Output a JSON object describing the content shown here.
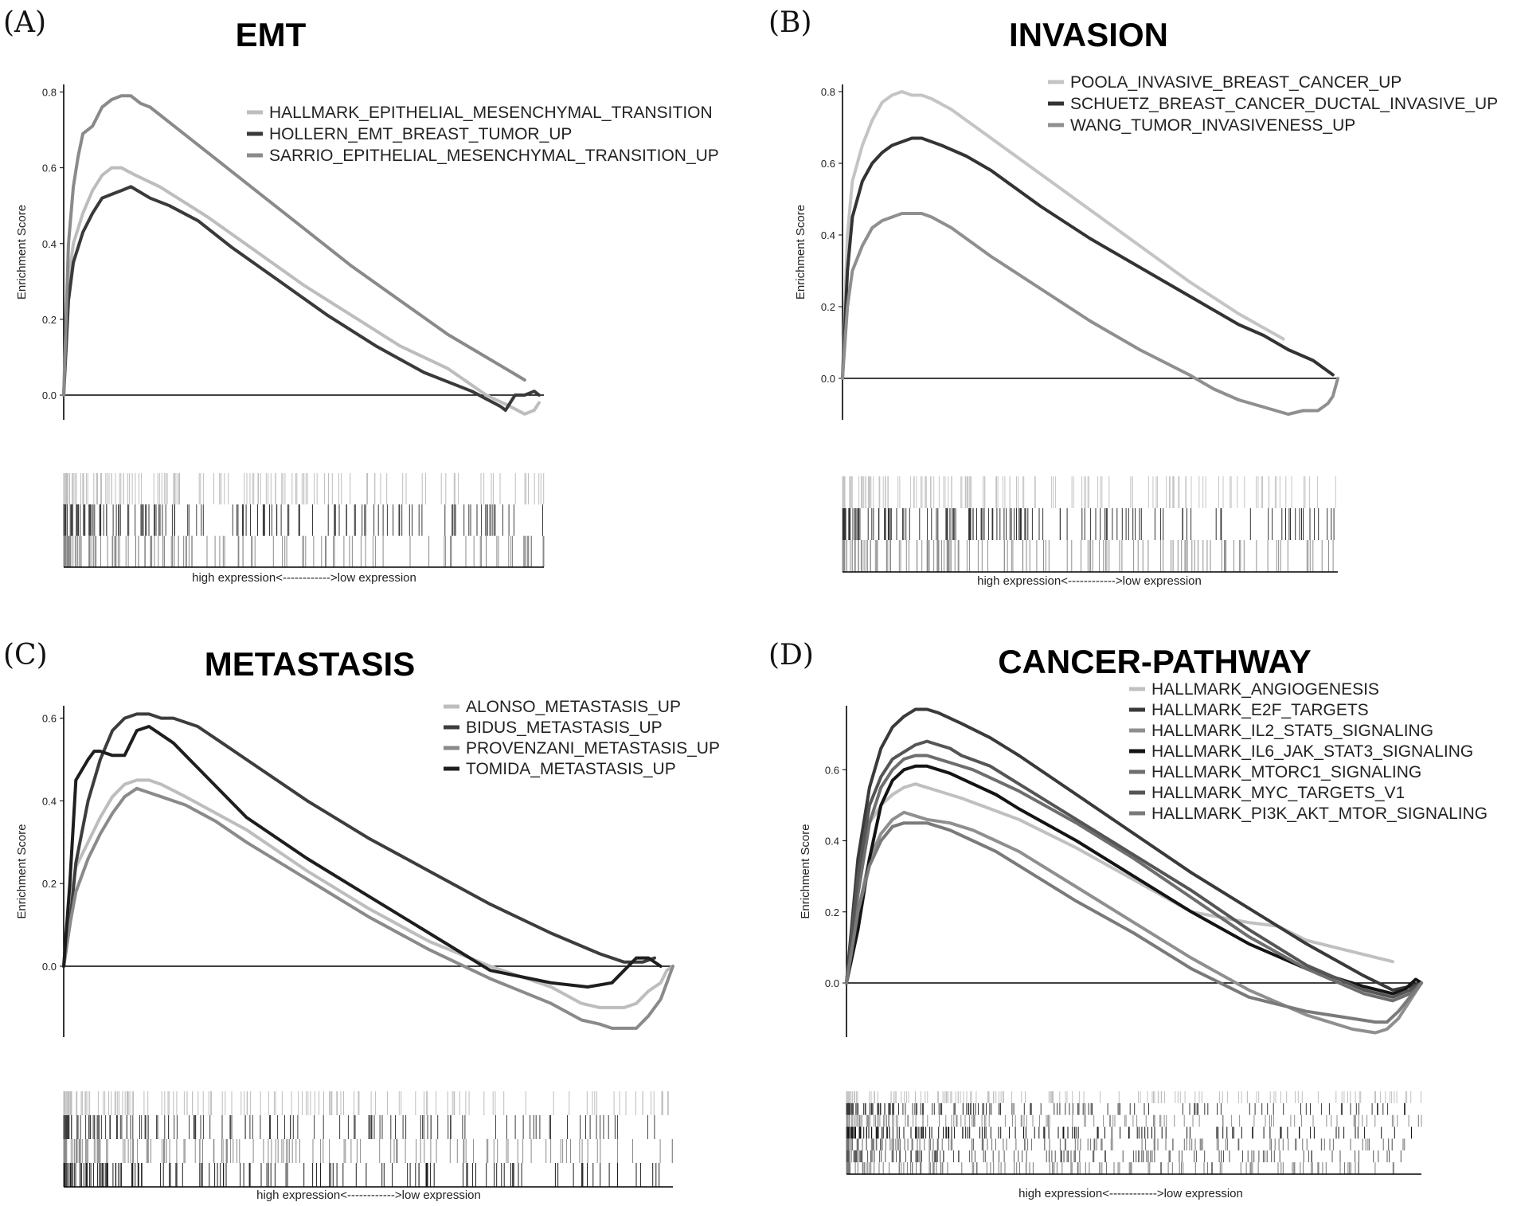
{
  "chart_data": [
    {
      "type": "line",
      "panel_label": "(A)",
      "title": "EMT",
      "ylabel": "Enrichment Score",
      "xlabel": "high expression<------------>low expression",
      "xlim": [
        0,
        100
      ],
      "ylim": [
        -0.08,
        0.82
      ],
      "yticks": [
        0.0,
        0.2,
        0.4,
        0.6,
        0.8
      ],
      "ytick_labels": [
        "0.0",
        "0.2",
        "0.4",
        "0.6",
        "0.8"
      ],
      "legend_position": "top-right",
      "series": [
        {
          "name": "HALLMARK_EPITHELIAL_MESENCHYMAL_TRANSITION",
          "color": "#bdbdbd",
          "x": [
            0,
            1,
            2,
            4,
            6,
            8,
            10,
            12,
            15,
            20,
            25,
            30,
            40,
            50,
            60,
            70,
            80,
            88,
            93,
            96,
            98,
            99
          ],
          "y": [
            0.0,
            0.3,
            0.4,
            0.48,
            0.54,
            0.58,
            0.6,
            0.6,
            0.58,
            0.55,
            0.51,
            0.47,
            0.38,
            0.29,
            0.21,
            0.13,
            0.07,
            0.0,
            -0.03,
            -0.05,
            -0.04,
            -0.02
          ]
        },
        {
          "name": "HOLLERN_EMT_BREAST_TUMOR_UP",
          "color": "#3a3a3a",
          "x": [
            0,
            1,
            2,
            4,
            6,
            8,
            10,
            12,
            14,
            18,
            22,
            28,
            35,
            45,
            55,
            65,
            75,
            85,
            88,
            91,
            92,
            94,
            96,
            98,
            99
          ],
          "y": [
            0.0,
            0.25,
            0.35,
            0.43,
            0.48,
            0.52,
            0.53,
            0.54,
            0.55,
            0.52,
            0.5,
            0.46,
            0.39,
            0.3,
            0.21,
            0.13,
            0.06,
            0.01,
            -0.01,
            -0.03,
            -0.04,
            0.0,
            0.0,
            0.01,
            0.0
          ]
        },
        {
          "name": "SARRIO_EPITHELIAL_MESENCHYMAL_TRANSITION_UP",
          "color": "#8a8a8a",
          "x": [
            0,
            1,
            2,
            3,
            4,
            6,
            8,
            10,
            12,
            14,
            16,
            18,
            22,
            26,
            30,
            40,
            50,
            60,
            70,
            80,
            88,
            92,
            96
          ],
          "y": [
            0.0,
            0.4,
            0.55,
            0.63,
            0.69,
            0.71,
            0.76,
            0.78,
            0.79,
            0.79,
            0.77,
            0.76,
            0.72,
            0.68,
            0.64,
            0.54,
            0.44,
            0.34,
            0.25,
            0.16,
            0.1,
            0.07,
            0.04
          ]
        }
      ],
      "rug_rows": 3
    },
    {
      "type": "line",
      "panel_label": "(B)",
      "title": "INVASION",
      "ylabel": "Enrichment Score",
      "xlabel": "high expression<------------>low expression",
      "xlim": [
        0,
        100
      ],
      "ylim": [
        -0.12,
        0.82
      ],
      "yticks": [
        0.0,
        0.2,
        0.4,
        0.6,
        0.8
      ],
      "ytick_labels": [
        "0.0",
        "0.2",
        "0.4",
        "0.6",
        "0.8"
      ],
      "legend_position": "top-right",
      "series": [
        {
          "name": "POOLA_INVASIVE_BREAST_CANCER_UP",
          "color": "#c4c4c4",
          "x": [
            0,
            1,
            2,
            4,
            6,
            8,
            10,
            12,
            14,
            16,
            18,
            22,
            26,
            30,
            40,
            50,
            60,
            70,
            80,
            89
          ],
          "y": [
            0.0,
            0.4,
            0.55,
            0.65,
            0.72,
            0.77,
            0.79,
            0.8,
            0.79,
            0.79,
            0.78,
            0.75,
            0.71,
            0.67,
            0.57,
            0.47,
            0.37,
            0.27,
            0.18,
            0.11
          ]
        },
        {
          "name": "SCHUETZ_BREAST_CANCER_DUCTAL_INVASIVE_UP",
          "color": "#333333",
          "x": [
            0,
            1,
            2,
            4,
            6,
            8,
            10,
            12,
            14,
            16,
            18,
            20,
            25,
            30,
            40,
            50,
            60,
            70,
            80,
            85,
            90,
            95,
            98,
            99
          ],
          "y": [
            0.0,
            0.3,
            0.45,
            0.55,
            0.6,
            0.63,
            0.65,
            0.66,
            0.67,
            0.67,
            0.66,
            0.65,
            0.62,
            0.58,
            0.48,
            0.39,
            0.31,
            0.23,
            0.15,
            0.12,
            0.08,
            0.05,
            0.02,
            0.01
          ]
        },
        {
          "name": "WANG_TUMOR_INVASIVENESS_UP",
          "color": "#8f8f8f",
          "x": [
            0,
            1,
            2,
            4,
            6,
            8,
            10,
            12,
            14,
            16,
            18,
            22,
            26,
            30,
            40,
            50,
            60,
            70,
            75,
            80,
            85,
            90,
            93,
            96,
            98,
            99,
            100
          ],
          "y": [
            0.0,
            0.2,
            0.3,
            0.37,
            0.42,
            0.44,
            0.45,
            0.46,
            0.46,
            0.46,
            0.45,
            0.42,
            0.38,
            0.34,
            0.25,
            0.16,
            0.08,
            0.01,
            -0.03,
            -0.06,
            -0.08,
            -0.1,
            -0.09,
            -0.09,
            -0.07,
            -0.05,
            0.0
          ]
        }
      ],
      "rug_rows": 3
    },
    {
      "type": "line",
      "panel_label": "(C)",
      "title": "METASTASIS",
      "ylabel": "Enrichment Score",
      "xlabel": "high expression<------------>low expression",
      "xlim": [
        0,
        100
      ],
      "ylim": [
        -0.2,
        0.63
      ],
      "yticks": [
        0.0,
        0.2,
        0.4,
        0.6
      ],
      "ytick_labels": [
        "0.0",
        "0.2",
        "0.4",
        "0.6"
      ],
      "legend_position": "top-right",
      "series": [
        {
          "name": "ALONSO_METASTASIS_UP",
          "color": "#bdbdbd",
          "x": [
            0,
            1,
            2,
            4,
            6,
            8,
            10,
            12,
            14,
            16,
            20,
            25,
            30,
            40,
            50,
            60,
            70,
            80,
            85,
            88,
            92,
            94,
            96,
            98,
            99,
            100
          ],
          "y": [
            0.0,
            0.15,
            0.24,
            0.3,
            0.36,
            0.41,
            0.44,
            0.45,
            0.45,
            0.44,
            0.41,
            0.37,
            0.33,
            0.23,
            0.14,
            0.06,
            0.0,
            -0.05,
            -0.09,
            -0.1,
            -0.1,
            -0.09,
            -0.06,
            -0.04,
            -0.01,
            0.0
          ]
        },
        {
          "name": "BIDUS_METASTASIS_UP",
          "color": "#3d3d3d",
          "x": [
            0,
            1,
            2,
            4,
            6,
            8,
            10,
            12,
            14,
            16,
            18,
            22,
            26,
            30,
            40,
            50,
            60,
            70,
            80,
            88,
            92,
            95,
            97
          ],
          "y": [
            0.0,
            0.1,
            0.25,
            0.4,
            0.5,
            0.57,
            0.6,
            0.61,
            0.61,
            0.6,
            0.6,
            0.58,
            0.54,
            0.5,
            0.4,
            0.31,
            0.23,
            0.15,
            0.08,
            0.03,
            0.01,
            0.01,
            0.02
          ]
        },
        {
          "name": "PROVENZANI_METASTASIS_UP",
          "color": "#8a8a8a",
          "x": [
            0,
            1,
            2,
            4,
            6,
            8,
            10,
            12,
            14,
            16,
            20,
            25,
            30,
            40,
            50,
            60,
            70,
            80,
            85,
            88,
            90,
            94,
            96,
            98,
            99,
            100
          ],
          "y": [
            0.0,
            0.1,
            0.18,
            0.26,
            0.32,
            0.37,
            0.41,
            0.43,
            0.42,
            0.41,
            0.39,
            0.35,
            0.3,
            0.21,
            0.12,
            0.04,
            -0.03,
            -0.09,
            -0.13,
            -0.14,
            -0.15,
            -0.15,
            -0.12,
            -0.08,
            -0.04,
            0.0
          ]
        },
        {
          "name": "TOMIDA_METASTASIS_UP",
          "color": "#1e1e1e",
          "x": [
            0,
            1,
            2,
            4,
            5,
            6,
            8,
            10,
            12,
            14,
            16,
            18,
            22,
            26,
            30,
            40,
            50,
            60,
            70,
            80,
            86,
            90,
            92,
            94,
            96,
            98
          ],
          "y": [
            0.0,
            0.2,
            0.45,
            0.5,
            0.52,
            0.52,
            0.51,
            0.51,
            0.57,
            0.58,
            0.56,
            0.54,
            0.48,
            0.42,
            0.36,
            0.26,
            0.17,
            0.08,
            -0.01,
            -0.04,
            -0.05,
            -0.04,
            -0.01,
            0.02,
            0.02,
            0.0
          ]
        }
      ],
      "rug_rows": 4
    },
    {
      "type": "line",
      "panel_label": "(D)",
      "title": "CANCER-PATHWAY",
      "ylabel": "Enrichment Score",
      "xlabel": "high expression<------------>low expression",
      "xlim": [
        0,
        100
      ],
      "ylim": [
        -0.15,
        0.78
      ],
      "yticks": [
        0.0,
        0.2,
        0.4,
        0.6
      ],
      "ytick_labels": [
        "0.0",
        "0.2",
        "0.4",
        "0.6"
      ],
      "legend_position": "top-right",
      "series": [
        {
          "name": "HALLMARK_ANGIOGENESIS",
          "color": "#c0c0c0",
          "x": [
            0,
            2,
            4,
            6,
            8,
            10,
            12,
            16,
            20,
            25,
            30,
            40,
            50,
            60,
            70,
            75,
            80,
            85,
            90,
            95
          ],
          "y": [
            0.0,
            0.3,
            0.45,
            0.5,
            0.53,
            0.55,
            0.56,
            0.54,
            0.52,
            0.49,
            0.46,
            0.38,
            0.29,
            0.2,
            0.17,
            0.16,
            0.12,
            0.1,
            0.08,
            0.06
          ]
        },
        {
          "name": "HALLMARK_E2F_TARGETS",
          "color": "#3a3a3a",
          "x": [
            0,
            2,
            4,
            6,
            8,
            10,
            12,
            14,
            16,
            20,
            25,
            30,
            40,
            50,
            60,
            70,
            80,
            90,
            95,
            98,
            100
          ],
          "y": [
            0.0,
            0.35,
            0.55,
            0.66,
            0.72,
            0.75,
            0.77,
            0.77,
            0.76,
            0.73,
            0.69,
            0.64,
            0.53,
            0.42,
            0.31,
            0.21,
            0.11,
            0.02,
            -0.02,
            -0.01,
            0.0
          ]
        },
        {
          "name": "HALLMARK_IL2_STAT5_SIGNALING",
          "color": "#8f8f8f",
          "x": [
            0,
            2,
            4,
            6,
            8,
            10,
            12,
            14,
            18,
            22,
            26,
            30,
            40,
            50,
            60,
            70,
            80,
            88,
            92,
            94,
            96,
            98,
            100
          ],
          "y": [
            0.0,
            0.2,
            0.35,
            0.42,
            0.46,
            0.48,
            0.47,
            0.46,
            0.45,
            0.43,
            0.4,
            0.37,
            0.27,
            0.17,
            0.07,
            -0.02,
            -0.09,
            -0.13,
            -0.14,
            -0.13,
            -0.1,
            -0.05,
            0.0
          ]
        },
        {
          "name": "HALLMARK_IL6_JAK_STAT3_SIGNALING",
          "color": "#141414",
          "x": [
            0,
            2,
            4,
            6,
            8,
            10,
            12,
            14,
            18,
            22,
            26,
            30,
            40,
            50,
            60,
            70,
            80,
            90,
            95,
            97,
            99,
            100
          ],
          "y": [
            0.0,
            0.15,
            0.35,
            0.5,
            0.57,
            0.6,
            0.61,
            0.61,
            0.59,
            0.56,
            0.53,
            0.49,
            0.4,
            0.3,
            0.2,
            0.11,
            0.04,
            -0.01,
            -0.03,
            -0.02,
            0.01,
            0.0
          ]
        },
        {
          "name": "HALLMARK_MTORC1_SIGNALING",
          "color": "#6e6e6e",
          "x": [
            0,
            2,
            4,
            6,
            8,
            10,
            12,
            14,
            16,
            18,
            22,
            26,
            30,
            40,
            50,
            60,
            70,
            80,
            90,
            95,
            98,
            100
          ],
          "y": [
            0.0,
            0.25,
            0.45,
            0.55,
            0.6,
            0.63,
            0.64,
            0.64,
            0.63,
            0.62,
            0.6,
            0.57,
            0.54,
            0.45,
            0.35,
            0.24,
            0.13,
            0.04,
            -0.03,
            -0.05,
            -0.03,
            0.0
          ]
        },
        {
          "name": "HALLMARK_MYC_TARGETS_V1",
          "color": "#555555",
          "x": [
            0,
            2,
            4,
            6,
            8,
            10,
            12,
            14,
            16,
            18,
            20,
            25,
            30,
            40,
            50,
            60,
            70,
            80,
            90,
            95,
            98,
            100
          ],
          "y": [
            0.0,
            0.3,
            0.5,
            0.58,
            0.63,
            0.65,
            0.67,
            0.68,
            0.67,
            0.66,
            0.64,
            0.61,
            0.56,
            0.46,
            0.36,
            0.26,
            0.15,
            0.05,
            -0.02,
            -0.04,
            -0.02,
            0.0
          ]
        },
        {
          "name": "HALLMARK_PI3K_AKT_MTOR_SIGNALING",
          "color": "#7a7a7a",
          "x": [
            0,
            2,
            4,
            6,
            8,
            10,
            12,
            14,
            18,
            22,
            26,
            30,
            40,
            50,
            60,
            70,
            80,
            88,
            92,
            94,
            96,
            98,
            100
          ],
          "y": [
            0.0,
            0.2,
            0.33,
            0.4,
            0.44,
            0.45,
            0.45,
            0.45,
            0.43,
            0.4,
            0.37,
            0.33,
            0.23,
            0.14,
            0.04,
            -0.04,
            -0.08,
            -0.1,
            -0.11,
            -0.11,
            -0.08,
            -0.04,
            0.0
          ]
        }
      ],
      "rug_rows": 7
    }
  ]
}
